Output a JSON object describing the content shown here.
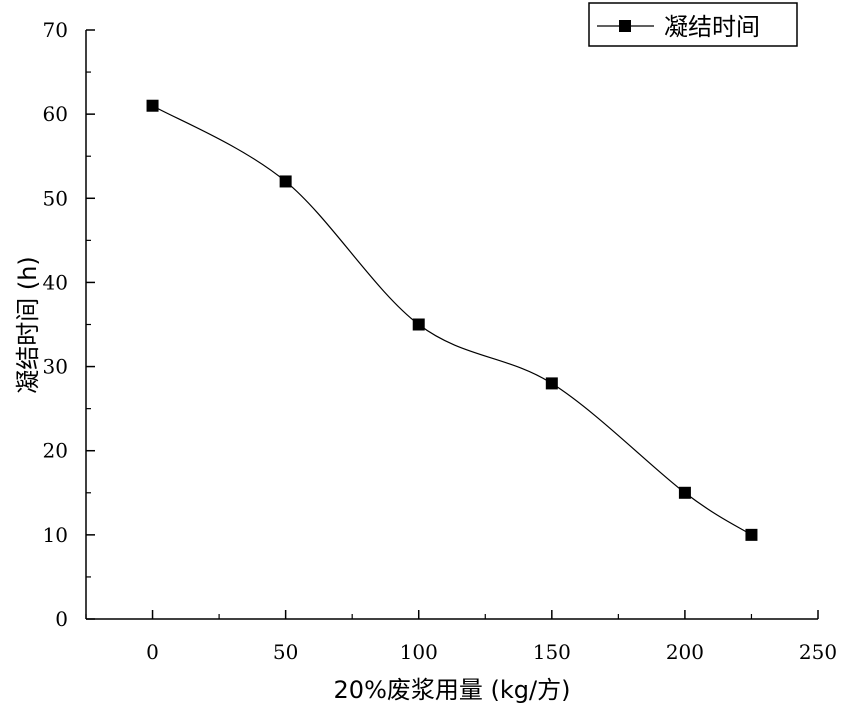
{
  "chart_data": {
    "type": "line",
    "x": [
      0,
      50,
      100,
      150,
      200,
      225
    ],
    "series": [
      {
        "name": "凝结时间",
        "values": [
          61,
          52,
          35,
          28,
          15,
          10
        ]
      }
    ],
    "xlabel": "20%废浆用量 (kg/方)",
    "ylabel": "凝结时间 (h)",
    "xlim": [
      -25,
      250
    ],
    "ylim": [
      0,
      70
    ],
    "xticks": [
      0,
      50,
      100,
      150,
      200,
      250
    ],
    "yticks": [
      0,
      10,
      20,
      30,
      40,
      50,
      60,
      70
    ],
    "legend_position": "top-right",
    "grid": false,
    "line_style": "smooth spline",
    "marker": "filled-square",
    "colors": {
      "line": "#000000",
      "marker": "#000000",
      "axis": "#000000"
    }
  }
}
